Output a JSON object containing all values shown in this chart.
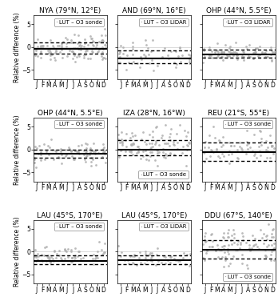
{
  "panels": [
    {
      "title": "NYA (79°N, 12°E)",
      "legend": "LUT – O3 sonde",
      "mean": -0.3,
      "upper": 1.0,
      "lower": -1.4,
      "n_points": 130,
      "seed": 42,
      "scatter_mean": -0.2,
      "scatter_std": 1.3,
      "legend_pos": "upper right"
    },
    {
      "title": "AND (69°N, 16°E)",
      "legend": "LUT – O3 LIDAR",
      "mean": -2.5,
      "upper": -0.7,
      "lower": -3.5,
      "n_points": 55,
      "seed": 43,
      "scatter_mean": -2.0,
      "scatter_std": 1.8,
      "legend_pos": "upper right"
    },
    {
      "title": "OHP (44°N, 5.5°E)",
      "legend": "LUT – O3 LIDAR",
      "mean": -1.5,
      "upper": -0.5,
      "lower": -2.2,
      "n_points": 90,
      "seed": 44,
      "scatter_mean": -1.3,
      "scatter_std": 0.8,
      "legend_pos": "upper right"
    },
    {
      "title": "OHP (44°N, 5.5°E)",
      "legend": "LUT – O3 sonde",
      "mean": -1.0,
      "upper": -0.1,
      "lower": -1.8,
      "n_points": 85,
      "seed": 45,
      "scatter_mean": -0.8,
      "scatter_std": 1.2,
      "legend_pos": "upper right"
    },
    {
      "title": "IZA (28°N, 16°W)",
      "legend": "LUT – O3 sonde",
      "mean": 0.0,
      "upper": 2.0,
      "lower": -1.2,
      "n_points": 110,
      "seed": 46,
      "scatter_mean": 0.8,
      "scatter_std": 2.0,
      "legend_pos": "lower right"
    },
    {
      "title": "REU (21°S, 55°E)",
      "legend": "LUT – O3 sonde",
      "mean": -0.5,
      "upper": 1.5,
      "lower": -2.5,
      "n_points": 75,
      "seed": 47,
      "scatter_mean": 0.0,
      "scatter_std": 1.8,
      "legend_pos": "upper right"
    },
    {
      "title": "LAU (45°S, 170°E)",
      "legend": "LUT – O3 sonde",
      "mean": -2.0,
      "upper": -0.8,
      "lower": -2.8,
      "n_points": 75,
      "seed": 48,
      "scatter_mean": -0.8,
      "scatter_std": 1.0,
      "legend_pos": "upper right"
    },
    {
      "title": "LAU (45°S, 170°E)",
      "legend": "LUT – O3 LIDAR",
      "mean": -1.8,
      "upper": -0.8,
      "lower": -2.8,
      "n_points": 55,
      "seed": 49,
      "scatter_mean": -1.2,
      "scatter_std": 0.9,
      "legend_pos": "upper right"
    },
    {
      "title": "DDU (67°S, 140°E)",
      "legend": "LUT – O3 sonde",
      "mean": 0.5,
      "upper": 2.5,
      "lower": -1.5,
      "n_points": 110,
      "seed": 50,
      "scatter_mean": 1.5,
      "scatter_std": 2.2,
      "legend_pos": "lower right"
    }
  ],
  "months": [
    "J",
    "F",
    "M",
    "A",
    "M",
    "J",
    "J",
    "A",
    "S",
    "O",
    "N",
    "D"
  ],
  "ylim": [
    -7,
    7
  ],
  "yticks": [
    -5,
    0,
    5
  ],
  "scatter_color": "#b0b0b0",
  "scatter_alpha": 0.85,
  "scatter_size": 4,
  "mean_lw": 1.5,
  "dashed_lw": 1.0,
  "ylabel": "Relative difference (%)",
  "legend_fontsize": 5.0,
  "title_fontsize": 6.5,
  "tick_fontsize": 5.5,
  "ylabel_fontsize": 5.5
}
